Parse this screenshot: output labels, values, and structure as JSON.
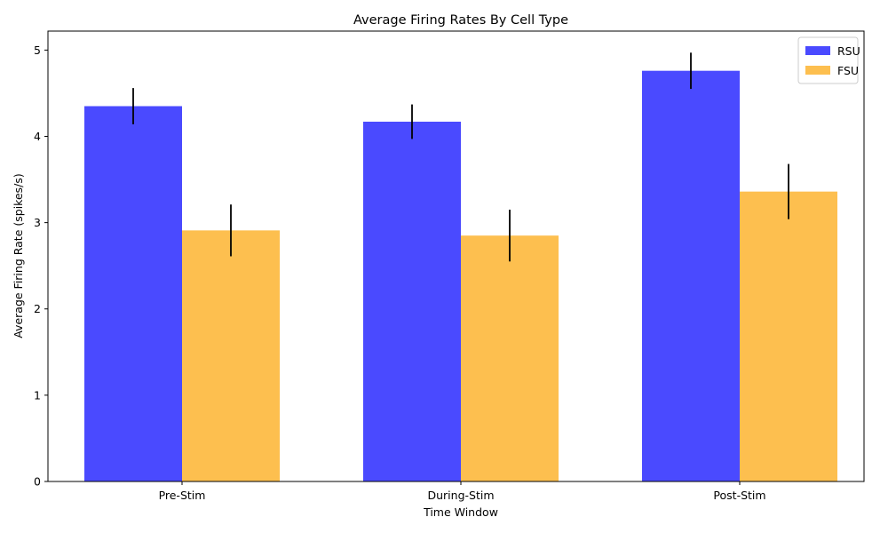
{
  "chart_data": {
    "type": "bar",
    "title": "Average Firing Rates By Cell Type",
    "xlabel": "Time Window",
    "ylabel": "Average Firing Rate (spikes/s)",
    "categories": [
      "Pre-Stim",
      "During-Stim",
      "Post-Stim"
    ],
    "ylim": [
      0,
      5.22
    ],
    "yticks": [
      0,
      1,
      2,
      3,
      4,
      5
    ],
    "ytick_labels": [
      "0",
      "1",
      "2",
      "3",
      "4",
      "5"
    ],
    "series": [
      {
        "name": "RSU",
        "color": "#4a4aff",
        "values": [
          4.35,
          4.17,
          4.76
        ],
        "errors": [
          0.21,
          0.2,
          0.21
        ]
      },
      {
        "name": "FSU",
        "color": "#fdbf4f",
        "values": [
          2.91,
          2.85,
          3.36
        ],
        "errors": [
          0.3,
          0.3,
          0.32
        ]
      }
    ],
    "legend": "top-right",
    "grid": false
  }
}
